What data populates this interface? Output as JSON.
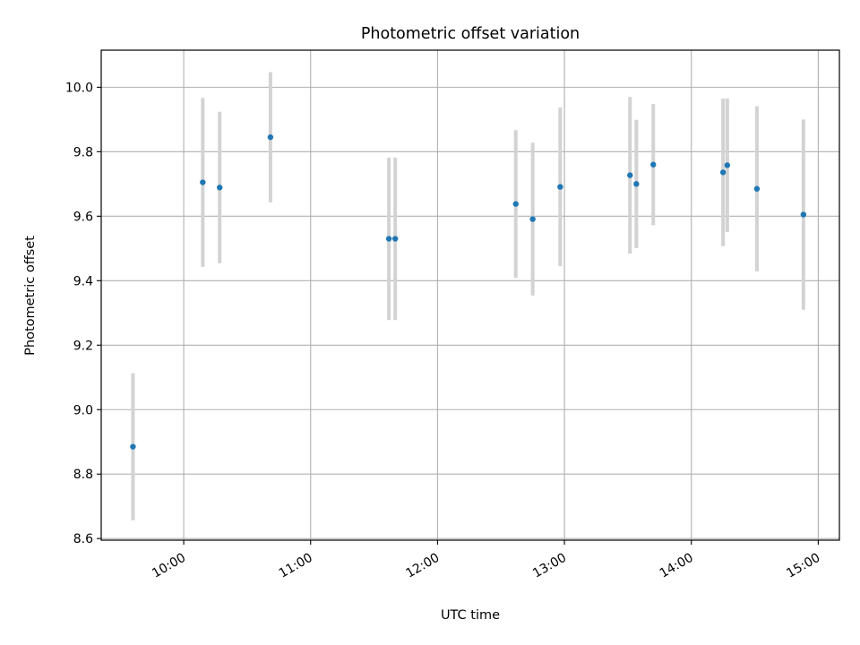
{
  "chart_data": {
    "type": "scatter",
    "title": "Photometric offset variation",
    "xlabel": "UTC time",
    "ylabel": "Photometric offset",
    "x_axis_type": "time",
    "xlim": [
      "09:21",
      "15:10"
    ],
    "ylim": [
      8.595,
      10.115
    ],
    "x_ticks": [
      "10:00",
      "11:00",
      "12:00",
      "13:00",
      "14:00",
      "15:00"
    ],
    "y_ticks": [
      8.6,
      8.8,
      9.0,
      9.2,
      9.4,
      9.6,
      9.8,
      10.0
    ],
    "y_tick_labels": [
      "8.6",
      "8.8",
      "9.0",
      "9.2",
      "9.4",
      "9.6",
      "9.8",
      "10.0"
    ],
    "grid": true,
    "legend": "none",
    "marker_color": "#1f77b4",
    "errorbar_color": "#d3d3d3",
    "series": [
      {
        "points": [
          {
            "x": "09:36",
            "y": 8.885,
            "err": 0.228
          },
          {
            "x": "10:09",
            "y": 9.705,
            "err": 0.262
          },
          {
            "x": "10:17",
            "y": 9.689,
            "err": 0.235
          },
          {
            "x": "10:41",
            "y": 9.845,
            "err": 0.202
          },
          {
            "x": "11:37",
            "y": 9.53,
            "err": 0.252
          },
          {
            "x": "11:40",
            "y": 9.53,
            "err": 0.252
          },
          {
            "x": "12:37",
            "y": 9.638,
            "err": 0.229
          },
          {
            "x": "12:45",
            "y": 9.591,
            "err": 0.237
          },
          {
            "x": "12:58",
            "y": 9.691,
            "err": 0.246
          },
          {
            "x": "13:31",
            "y": 9.727,
            "err": 0.243
          },
          {
            "x": "13:34",
            "y": 9.7,
            "err": 0.199
          },
          {
            "x": "13:42",
            "y": 9.76,
            "err": 0.188
          },
          {
            "x": "14:15",
            "y": 9.736,
            "err": 0.229
          },
          {
            "x": "14:17",
            "y": 9.758,
            "err": 0.207
          },
          {
            "x": "14:31",
            "y": 9.685,
            "err": 0.256
          },
          {
            "x": "14:53",
            "y": 9.605,
            "err": 0.295
          }
        ]
      }
    ]
  }
}
